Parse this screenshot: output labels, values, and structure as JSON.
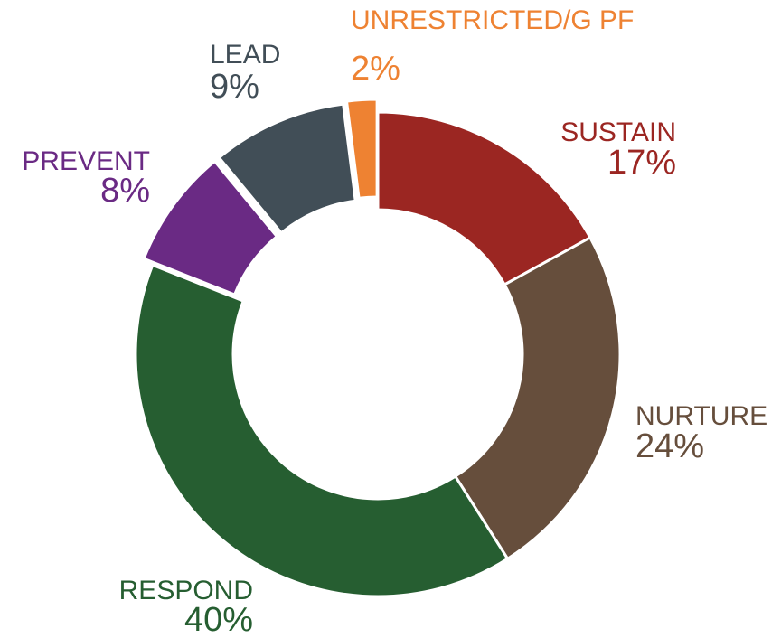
{
  "chart_data": {
    "type": "donut",
    "categories": [
      "SUSTAIN",
      "NURTURE",
      "RESPOND",
      "PREVENT",
      "LEAD",
      "UNRESTRICTED/G PF"
    ],
    "values": [
      17,
      24,
      40,
      8,
      9,
      2
    ],
    "value_labels": [
      "17%",
      "24%",
      "40%",
      "8%",
      "9%",
      "2%"
    ],
    "colors": [
      "#9b2622",
      "#664e3c",
      "#265e31",
      "#6a2a84",
      "#414e57",
      "#ee8232"
    ]
  }
}
